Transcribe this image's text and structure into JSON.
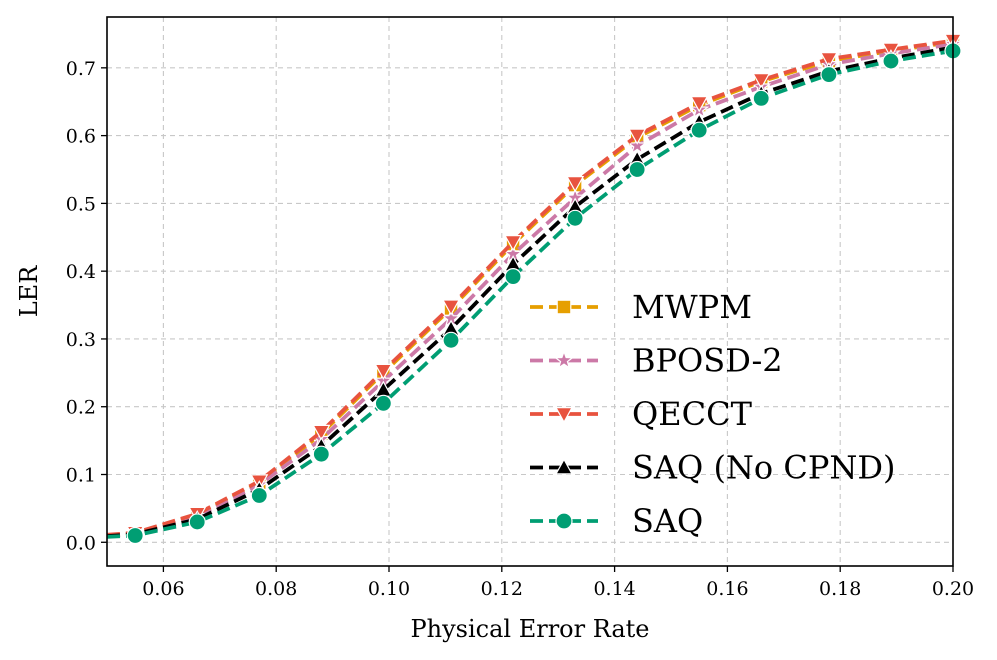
{
  "chart_data": {
    "type": "line",
    "title": "",
    "xlabel": "Physical Error Rate",
    "ylabel": "LER",
    "xlim": [
      0.05,
      0.2
    ],
    "ylim": [
      -0.035,
      0.775
    ],
    "xticks": [
      0.06,
      0.08,
      0.1,
      0.12,
      0.14,
      0.16,
      0.18,
      0.2
    ],
    "xtick_labels": [
      "0.06",
      "0.08",
      "0.10",
      "0.12",
      "0.14",
      "0.16",
      "0.18",
      "0.20"
    ],
    "yticks": [
      0.0,
      0.1,
      0.2,
      0.3,
      0.4,
      0.5,
      0.6,
      0.7
    ],
    "ytick_labels": [
      "0.0",
      "0.1",
      "0.2",
      "0.3",
      "0.4",
      "0.5",
      "0.6",
      "0.7"
    ],
    "grid": true,
    "legend_position": "lower-right",
    "x": [
      0.05,
      0.055,
      0.066,
      0.077,
      0.088,
      0.099,
      0.111,
      0.122,
      0.133,
      0.144,
      0.155,
      0.166,
      0.178,
      0.189,
      0.2
    ],
    "series": [
      {
        "name": "MWPM",
        "color": "#E69F00",
        "marker": "square",
        "values": [
          0.01,
          0.013,
          0.04,
          0.088,
          0.16,
          0.25,
          0.345,
          0.44,
          0.527,
          0.597,
          0.645,
          0.68,
          0.71,
          0.725,
          0.738
        ]
      },
      {
        "name": "BPOSD-2",
        "color": "#CC79A7",
        "marker": "star",
        "values": [
          0.01,
          0.013,
          0.038,
          0.085,
          0.152,
          0.238,
          0.33,
          0.425,
          0.508,
          0.585,
          0.638,
          0.672,
          0.705,
          0.721,
          0.735
        ]
      },
      {
        "name": "QECCT",
        "color": "#E8533F",
        "marker": "triangle-down",
        "values": [
          0.011,
          0.014,
          0.042,
          0.09,
          0.163,
          0.253,
          0.348,
          0.443,
          0.53,
          0.6,
          0.648,
          0.682,
          0.713,
          0.727,
          0.74
        ]
      },
      {
        "name": "SAQ (No CPND)",
        "color": "#000000",
        "marker": "triangle-up",
        "values": [
          0.009,
          0.012,
          0.034,
          0.078,
          0.142,
          0.225,
          0.315,
          0.41,
          0.495,
          0.565,
          0.62,
          0.662,
          0.695,
          0.714,
          0.73
        ]
      },
      {
        "name": "SAQ",
        "color": "#009E73",
        "marker": "circle",
        "values": [
          0.008,
          0.01,
          0.03,
          0.069,
          0.13,
          0.205,
          0.298,
          0.392,
          0.478,
          0.55,
          0.608,
          0.655,
          0.69,
          0.71,
          0.725
        ]
      }
    ]
  }
}
